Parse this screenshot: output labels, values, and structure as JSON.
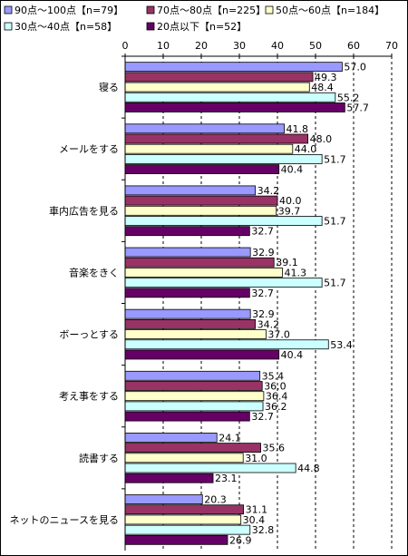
{
  "chart_data": {
    "type": "bar",
    "orientation": "horizontal",
    "title": "",
    "xlabel": "",
    "ylabel": "",
    "xlim": [
      0,
      70
    ],
    "x_ticks": [
      0,
      10,
      20,
      30,
      40,
      50,
      60,
      70
    ],
    "grid": "vertical dashed",
    "legend_position": "top",
    "categories": [
      "寝る",
      "メールをする",
      "車内広告を見る",
      "音楽をきく",
      "ボーっとする",
      "考え事をする",
      "読書する",
      "ネットのニュースを見る"
    ],
    "series": [
      {
        "name": "90点～100点【n=79】",
        "color": "#9999ff",
        "values": [
          57.0,
          41.8,
          34.2,
          32.9,
          32.9,
          35.4,
          24.1,
          20.3
        ]
      },
      {
        "name": "70点～80点【n=225】",
        "color": "#993366",
        "values": [
          49.3,
          48.0,
          40.0,
          39.1,
          34.2,
          36.0,
          35.6,
          31.1
        ]
      },
      {
        "name": "50点～60点【n=184】",
        "color": "#ffffcc",
        "values": [
          48.4,
          44.0,
          39.7,
          41.3,
          37.0,
          36.4,
          31.0,
          30.4
        ]
      },
      {
        "name": "30点～40点【n=58】",
        "color": "#ccffff",
        "values": [
          55.2,
          51.7,
          51.7,
          51.7,
          53.4,
          36.2,
          44.8,
          32.8
        ]
      },
      {
        "name": "20点以下【n=52】",
        "color": "#660066",
        "values": [
          57.7,
          40.4,
          32.7,
          32.7,
          40.4,
          32.7,
          23.1,
          26.9
        ]
      }
    ]
  }
}
